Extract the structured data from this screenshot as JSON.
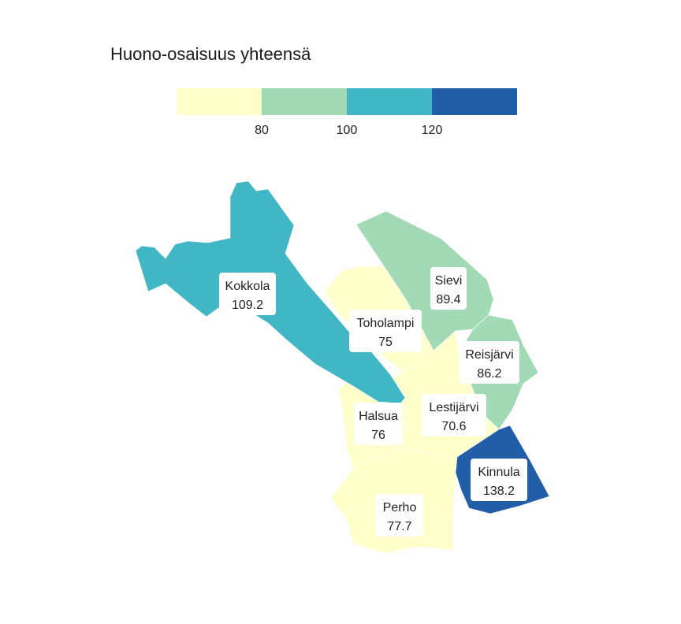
{
  "legend": {
    "title": "Huono-osaisuus yhteensä",
    "breaks": [
      80,
      100,
      120
    ],
    "colors": [
      "#ffffcc",
      "#a1dab4",
      "#41b6c4",
      "#225ea8"
    ]
  },
  "regions": [
    {
      "name": "Kokkola",
      "value": 109.2,
      "value_text": "109.2"
    },
    {
      "name": "Sievi",
      "value": 89.4,
      "value_text": "89.4"
    },
    {
      "name": "Toholampi",
      "value": 75,
      "value_text": "75"
    },
    {
      "name": "Reisjärvi",
      "value": 86.2,
      "value_text": "86.2"
    },
    {
      "name": "Halsua",
      "value": 76,
      "value_text": "76"
    },
    {
      "name": "Lestijärvi",
      "value": 70.6,
      "value_text": "70.6"
    },
    {
      "name": "Kinnula",
      "value": 138.2,
      "value_text": "138.2"
    },
    {
      "name": "Perho",
      "value": 77.7,
      "value_text": "77.7"
    }
  ]
}
